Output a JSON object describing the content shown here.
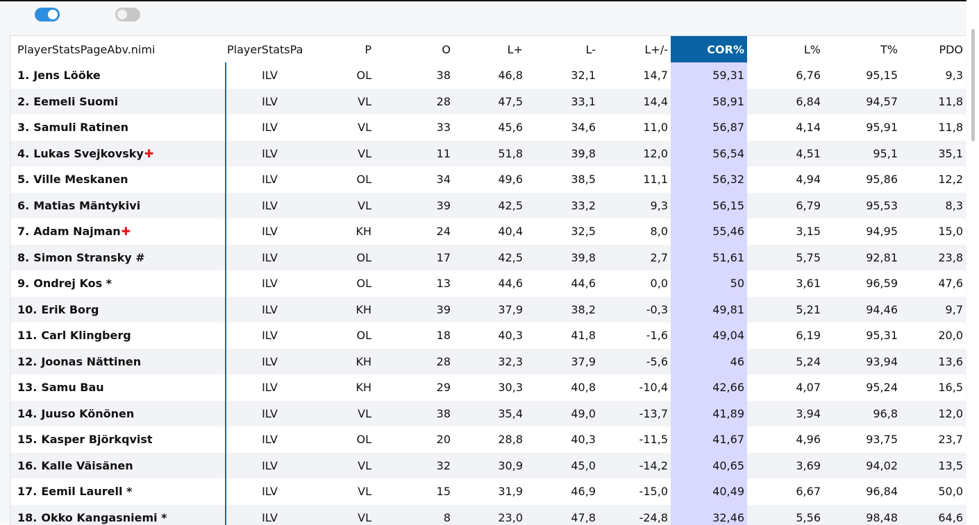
{
  "toggles": [
    {
      "name": "toggle-1",
      "on": true
    },
    {
      "name": "toggle-2",
      "on": false
    }
  ],
  "table": {
    "headers": [
      "PlayerStatsPageAbv.nimi",
      "PlayerStatsPa",
      "P",
      "O",
      "L+",
      "L-",
      "L+/-",
      "COR%",
      "L%",
      "T%",
      "PDO"
    ],
    "sorted_column": "COR%",
    "colors": {
      "sorted_header": "#0a64a3",
      "sorted_column": "#d9d8ff",
      "injury_icon": "#e01818"
    },
    "rows": [
      {
        "rank": "1.",
        "name": "Jens Lööke",
        "injured": false,
        "team": "ILV",
        "pos": "OL",
        "o": "38",
        "lplus": "46,8",
        "lminus": "32,1",
        "lpm": "14,7",
        "cor": "59,31",
        "lpct": "6,76",
        "tpct": "95,15",
        "pdo": "9,3"
      },
      {
        "rank": "2.",
        "name": "Eemeli Suomi",
        "injured": false,
        "team": "ILV",
        "pos": "VL",
        "o": "28",
        "lplus": "47,5",
        "lminus": "33,1",
        "lpm": "14,4",
        "cor": "58,91",
        "lpct": "6,84",
        "tpct": "94,57",
        "pdo": "11,8"
      },
      {
        "rank": "3.",
        "name": "Samuli Ratinen",
        "injured": false,
        "team": "ILV",
        "pos": "VL",
        "o": "33",
        "lplus": "45,6",
        "lminus": "34,6",
        "lpm": "11,0",
        "cor": "56,87",
        "lpct": "4,14",
        "tpct": "95,91",
        "pdo": "11,8"
      },
      {
        "rank": "4.",
        "name": "Lukas Svejkovsky",
        "injured": true,
        "team": "ILV",
        "pos": "VL",
        "o": "11",
        "lplus": "51,8",
        "lminus": "39,8",
        "lpm": "12,0",
        "cor": "56,54",
        "lpct": "4,51",
        "tpct": "95,1",
        "pdo": "35,1"
      },
      {
        "rank": "5.",
        "name": "Ville Meskanen",
        "injured": false,
        "team": "ILV",
        "pos": "OL",
        "o": "34",
        "lplus": "49,6",
        "lminus": "38,5",
        "lpm": "11,1",
        "cor": "56,32",
        "lpct": "4,94",
        "tpct": "95,86",
        "pdo": "12,2"
      },
      {
        "rank": "6.",
        "name": "Matias Mäntykivi",
        "injured": false,
        "team": "ILV",
        "pos": "VL",
        "o": "39",
        "lplus": "42,5",
        "lminus": "33,2",
        "lpm": "9,3",
        "cor": "56,15",
        "lpct": "6,79",
        "tpct": "95,53",
        "pdo": "8,3"
      },
      {
        "rank": "7.",
        "name": "Adam Najman",
        "injured": true,
        "team": "ILV",
        "pos": "KH",
        "o": "24",
        "lplus": "40,4",
        "lminus": "32,5",
        "lpm": "8,0",
        "cor": "55,46",
        "lpct": "3,15",
        "tpct": "94,95",
        "pdo": "15,0"
      },
      {
        "rank": "8.",
        "name": "Simon Stransky #",
        "injured": false,
        "team": "ILV",
        "pos": "OL",
        "o": "17",
        "lplus": "42,5",
        "lminus": "39,8",
        "lpm": "2,7",
        "cor": "51,61",
        "lpct": "5,75",
        "tpct": "92,81",
        "pdo": "23,8"
      },
      {
        "rank": "9.",
        "name": "Ondrej Kos *",
        "injured": false,
        "team": "ILV",
        "pos": "OL",
        "o": "13",
        "lplus": "44,6",
        "lminus": "44,6",
        "lpm": "0,0",
        "cor": "50",
        "lpct": "3,61",
        "tpct": "96,59",
        "pdo": "47,6"
      },
      {
        "rank": "10.",
        "name": "Erik Borg",
        "injured": false,
        "team": "ILV",
        "pos": "KH",
        "o": "39",
        "lplus": "37,9",
        "lminus": "38,2",
        "lpm": "-0,3",
        "cor": "49,81",
        "lpct": "5,21",
        "tpct": "94,46",
        "pdo": "9,7"
      },
      {
        "rank": "11.",
        "name": "Carl Klingberg",
        "injured": false,
        "team": "ILV",
        "pos": "OL",
        "o": "18",
        "lplus": "40,3",
        "lminus": "41,8",
        "lpm": "-1,6",
        "cor": "49,04",
        "lpct": "6,19",
        "tpct": "95,31",
        "pdo": "20,0"
      },
      {
        "rank": "12.",
        "name": "Joonas Nättinen",
        "injured": false,
        "team": "ILV",
        "pos": "KH",
        "o": "28",
        "lplus": "32,3",
        "lminus": "37,9",
        "lpm": "-5,6",
        "cor": "46",
        "lpct": "5,24",
        "tpct": "93,94",
        "pdo": "13,6"
      },
      {
        "rank": "13.",
        "name": "Samu Bau",
        "injured": false,
        "team": "ILV",
        "pos": "KH",
        "o": "29",
        "lplus": "30,3",
        "lminus": "40,8",
        "lpm": "-10,4",
        "cor": "42,66",
        "lpct": "4,07",
        "tpct": "95,24",
        "pdo": "16,5"
      },
      {
        "rank": "14.",
        "name": "Juuso Könönen",
        "injured": false,
        "team": "ILV",
        "pos": "VL",
        "o": "38",
        "lplus": "35,4",
        "lminus": "49,0",
        "lpm": "-13,7",
        "cor": "41,89",
        "lpct": "3,94",
        "tpct": "96,8",
        "pdo": "12,0"
      },
      {
        "rank": "15.",
        "name": "Kasper Björkqvist",
        "injured": false,
        "team": "ILV",
        "pos": "OL",
        "o": "20",
        "lplus": "28,8",
        "lminus": "40,3",
        "lpm": "-11,5",
        "cor": "41,67",
        "lpct": "4,96",
        "tpct": "93,75",
        "pdo": "23,7"
      },
      {
        "rank": "16.",
        "name": "Kalle Väisänen",
        "injured": false,
        "team": "ILV",
        "pos": "VL",
        "o": "32",
        "lplus": "30,9",
        "lminus": "45,0",
        "lpm": "-14,2",
        "cor": "40,65",
        "lpct": "3,69",
        "tpct": "94,02",
        "pdo": "13,5"
      },
      {
        "rank": "17.",
        "name": "Eemil Laurell *",
        "injured": false,
        "team": "ILV",
        "pos": "VL",
        "o": "15",
        "lplus": "31,9",
        "lminus": "46,9",
        "lpm": "-15,0",
        "cor": "40,49",
        "lpct": "6,67",
        "tpct": "96,84",
        "pdo": "50,0"
      },
      {
        "rank": "18.",
        "name": "Okko Kangasniemi *",
        "injured": false,
        "team": "ILV",
        "pos": "VL",
        "o": "8",
        "lplus": "23,0",
        "lminus": "47,8",
        "lpm": "-24,8",
        "cor": "32,46",
        "lpct": "5,56",
        "tpct": "98,48",
        "pdo": "64,6"
      }
    ]
  }
}
